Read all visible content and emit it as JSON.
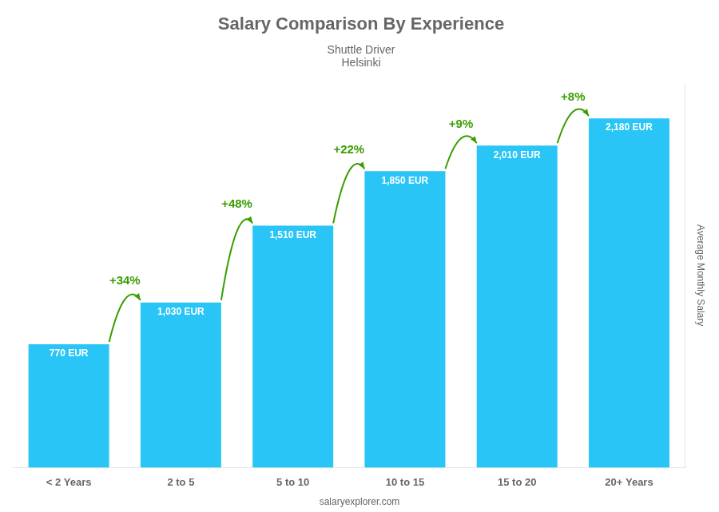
{
  "chart_data": {
    "type": "bar",
    "title": "Salary Comparison By Experience",
    "subtitle": [
      "Shuttle Driver",
      "Helsinki"
    ],
    "y_label": "Average Monthly Salary",
    "categories": [
      "< 2 Years",
      "2 to 5",
      "5 to 10",
      "10 to 15",
      "15 to 20",
      "20+ Years"
    ],
    "values": [
      770,
      1030,
      1510,
      1850,
      2010,
      2180
    ],
    "value_labels": [
      "770 EUR",
      "1,030 EUR",
      "1,510 EUR",
      "1,850 EUR",
      "2,010 EUR",
      "2,180 EUR"
    ],
    "data_labels": true,
    "color": "#29C5F6",
    "ylim": [
      0,
      2400
    ],
    "grid": false,
    "tick_labels": "x",
    "annotations": [
      {
        "text": "+34%",
        "from": "< 2 Years",
        "to": "2 to 5"
      },
      {
        "text": "+48%",
        "from": "2 to 5",
        "to": "5 to 10"
      },
      {
        "text": "+22%",
        "from": "5 to 10",
        "to": "10 to 15"
      },
      {
        "text": "+9%",
        "from": "10 to 15",
        "to": "15 to 20"
      },
      {
        "text": "+8%",
        "from": "15 to 20",
        "to": "20+ Years"
      },
      {
        "text": "salaryexplorer.com"
      }
    ]
  }
}
